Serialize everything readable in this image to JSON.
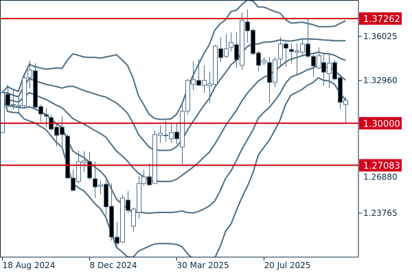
{
  "chart_data": {
    "type": "candlestick",
    "overlay": "bollinger-bands",
    "ylim": [
      1.2076,
      1.3855
    ],
    "y_ticks": [
      "1.36025",
      "1.32960",
      "1.26880",
      "1.23765"
    ],
    "x_ticks": [
      {
        "index": 0,
        "label": "18 Aug 2024"
      },
      {
        "index": 16,
        "label": "8 Dec 2024"
      },
      {
        "index": 32,
        "label": "30 Mar 2025"
      },
      {
        "index": 48,
        "label": "20 Jul 2025"
      }
    ],
    "levels": [
      {
        "value": 1.37262,
        "label": "1.37262"
      },
      {
        "value": 1.3,
        "label": "1.30000"
      },
      {
        "value": 1.27083,
        "label": "1.27083"
      }
    ],
    "colors": {
      "level": "#d0021b",
      "band": "#4e6e85",
      "bull_fill": "#ffffff",
      "bear_fill": "#000000",
      "axis": "#0f2a40"
    },
    "ohlc": [
      [
        1.2935,
        1.3211,
        1.2935,
        1.3211
      ],
      [
        1.3202,
        1.3269,
        1.3106,
        1.3125
      ],
      [
        1.313,
        1.324,
        1.3092,
        1.3128
      ],
      [
        1.3116,
        1.3197,
        1.3068,
        1.3125
      ],
      [
        1.3121,
        1.3335,
        1.3106,
        1.3316
      ],
      [
        1.3316,
        1.3436,
        1.3245,
        1.3369
      ],
      [
        1.3364,
        1.3416,
        1.3106,
        1.3111
      ],
      [
        1.3116,
        1.313,
        1.3011,
        1.3064
      ],
      [
        1.3059,
        1.3106,
        1.2973,
        1.3049
      ],
      [
        1.304,
        1.3059,
        1.2949,
        1.2959
      ],
      [
        1.2973,
        1.2997,
        1.2839,
        1.2916
      ],
      [
        1.2973,
        1.3049,
        1.2844,
        1.2921
      ],
      [
        1.2911,
        1.2925,
        1.2615,
        1.262
      ],
      [
        1.262,
        1.2677,
        1.253,
        1.2534
      ],
      [
        1.2596,
        1.2811,
        1.2582,
        1.2734
      ],
      [
        1.2725,
        1.2806,
        1.2663,
        1.2739
      ],
      [
        1.2734,
        1.2801,
        1.2606,
        1.262
      ],
      [
        1.2615,
        1.2734,
        1.2482,
        1.2558
      ],
      [
        1.2563,
        1.2601,
        1.2505,
        1.2572
      ],
      [
        1.2577,
        1.2606,
        1.2362,
        1.242
      ],
      [
        1.2424,
        1.2582,
        1.2186,
        1.221
      ],
      [
        1.221,
        1.2315,
        1.2143,
        1.2167
      ],
      [
        1.2176,
        1.2505,
        1.2171,
        1.2482
      ],
      [
        1.2467,
        1.2529,
        1.2377,
        1.2396
      ],
      [
        1.2286,
        1.2415,
        1.2248,
        1.2405
      ],
      [
        1.2381,
        1.2634,
        1.2338,
        1.2582
      ],
      [
        1.2582,
        1.2677,
        1.2567,
        1.2629
      ],
      [
        1.2629,
        1.272,
        1.2567,
        1.2572
      ],
      [
        1.2582,
        1.2949,
        1.2582,
        1.2921
      ],
      [
        1.2916,
        1.2987,
        1.2863,
        1.293
      ],
      [
        1.2916,
        1.3016,
        1.2873,
        1.2918
      ],
      [
        1.2892,
        1.3001,
        1.2863,
        1.2935
      ],
      [
        1.2939,
        1.3001,
        1.2854,
        1.2892
      ],
      [
        1.2835,
        1.3125,
        1.2715,
        1.3083
      ],
      [
        1.3083,
        1.3307,
        1.3059,
        1.3297
      ],
      [
        1.3269,
        1.3431,
        1.323,
        1.3302
      ],
      [
        1.3297,
        1.3445,
        1.3259,
        1.3264
      ],
      [
        1.3264,
        1.3402,
        1.3211,
        1.3297
      ],
      [
        1.3259,
        1.3359,
        1.314,
        1.3273
      ],
      [
        1.3269,
        1.3545,
        1.3264,
        1.3536
      ],
      [
        1.3517,
        1.3593,
        1.3426,
        1.3455
      ],
      [
        1.3464,
        1.3617,
        1.345,
        1.3517
      ],
      [
        1.3526,
        1.3631,
        1.3498,
        1.356
      ],
      [
        1.3545,
        1.3631,
        1.3383,
        1.344
      ],
      [
        1.3402,
        1.3769,
        1.3369,
        1.3712
      ],
      [
        1.3703,
        1.3788,
        1.356,
        1.3641
      ],
      [
        1.3645,
        1.3655,
        1.3474,
        1.3483
      ],
      [
        1.3488,
        1.3502,
        1.3359,
        1.3402
      ],
      [
        1.3421,
        1.3459,
        1.3402,
        1.3436
      ],
      [
        1.3421,
        1.3459,
        1.314,
        1.3283
      ],
      [
        1.3283,
        1.3459,
        1.325,
        1.344
      ],
      [
        1.3445,
        1.3598,
        1.3397,
        1.355
      ],
      [
        1.355,
        1.3564,
        1.3393,
        1.3521
      ],
      [
        1.3512,
        1.3555,
        1.3412,
        1.3498
      ],
      [
        1.3493,
        1.3555,
        1.3335,
        1.3502
      ],
      [
        1.3493,
        1.3583,
        1.3474,
        1.355
      ],
      [
        1.355,
        1.3726,
        1.3455,
        1.3464
      ],
      [
        1.3464,
        1.3474,
        1.3321,
        1.3397
      ],
      [
        1.3383,
        1.3526,
        1.3378,
        1.3469
      ],
      [
        1.3421,
        1.3483,
        1.3259,
        1.3354
      ],
      [
        1.3345,
        1.3478,
        1.3245,
        1.3416
      ],
      [
        1.3421,
        1.344,
        1.3297,
        1.3307
      ],
      [
        1.3316,
        1.334,
        1.3097,
        1.3145
      ],
      [
        1.313,
        1.3178,
        1.3006,
        1.3159
      ]
    ]
  }
}
